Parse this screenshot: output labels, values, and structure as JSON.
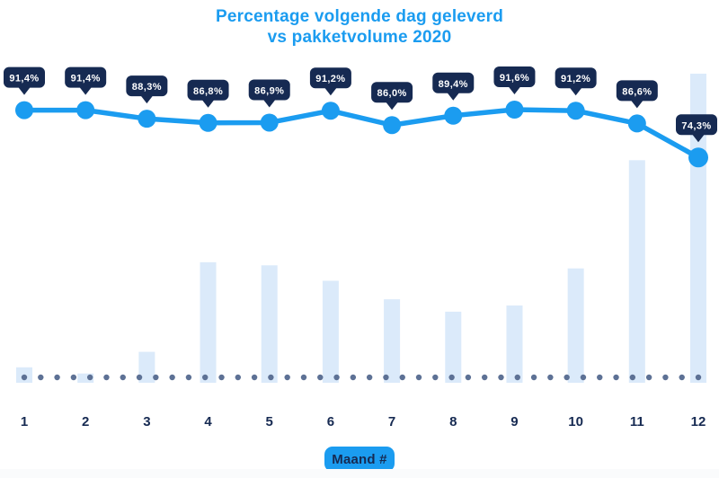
{
  "title": {
    "line1": "Percentage volgende dag geleverd",
    "line2": "vs pakketvolume 2020"
  },
  "x_axis": {
    "badge_label": "Maand #"
  },
  "colors": {
    "accent_blue": "#1b9cf0",
    "navy": "#162a52",
    "bar_fill": "#dbeafa",
    "dot_fill": "#5d7195",
    "tooltip_text": "#ffffff",
    "background": "#ffffff",
    "footer_strip": "#fafbfc"
  },
  "chart_data": {
    "type": "combo",
    "title": "Percentage volgende dag geleverd vs pakketvolume 2020",
    "categories": [
      "1",
      "2",
      "3",
      "4",
      "5",
      "6",
      "7",
      "8",
      "9",
      "10",
      "11",
      "12"
    ],
    "xlabel": "Maand #",
    "grid": "dotted baseline only",
    "legend_position": "none",
    "series": [
      {
        "name": "Percentage volgende dag geleverd",
        "type": "line",
        "unit": "%",
        "color": "#1b9cf0",
        "values": [
          91.4,
          91.4,
          88.3,
          86.8,
          86.9,
          91.2,
          86.0,
          89.4,
          91.6,
          91.2,
          86.6,
          74.3
        ],
        "labels": [
          "91,4%",
          "91,4%",
          "88,3%",
          "86,8%",
          "86,9%",
          "91,2%",
          "86,0%",
          "89,4%",
          "91,6%",
          "91,2%",
          "86,6%",
          "74,3%"
        ],
        "ylim": [
          70,
          95
        ]
      },
      {
        "name": "Pakketvolume",
        "type": "bar",
        "color": "#dbeafa",
        "values_pct_of_max": [
          5,
          3,
          10,
          39,
          38,
          33,
          27,
          23,
          25,
          37,
          72,
          100
        ]
      }
    ]
  }
}
